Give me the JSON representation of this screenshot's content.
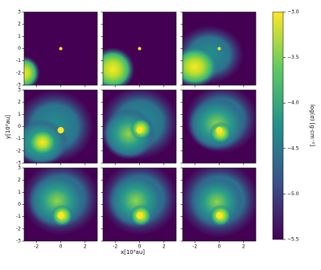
{
  "chart_data": {
    "type": "heatmap-grid",
    "xlabel": "x[10³au]",
    "ylabel": "y[10³au]",
    "colorbar_label": "log(σ) [g·cm⁻²]",
    "xlim": [
      -3,
      3
    ],
    "xticks": [
      -2,
      0,
      2
    ],
    "ylim": [
      -3,
      3
    ],
    "yticks": [
      -3,
      -2,
      -1,
      0,
      1,
      2,
      3
    ],
    "clim": [
      -5.5,
      -3
    ],
    "cticks": [
      {
        "value": -3,
        "label": "−3.0"
      },
      {
        "value": -3.5,
        "label": "−3.5"
      },
      {
        "value": -4,
        "label": "−4.0"
      },
      {
        "value": -4.5,
        "label": "−4.5"
      },
      {
        "value": -5,
        "label": "−5.0"
      },
      {
        "value": -5.5,
        "label": "−5.5"
      }
    ],
    "colormap": "viridis"
  }
}
